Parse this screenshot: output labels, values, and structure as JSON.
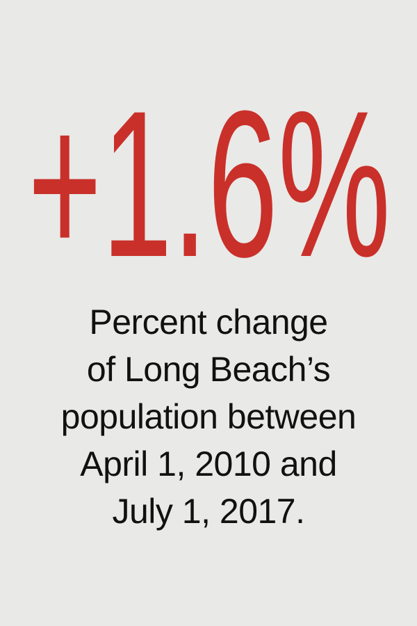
{
  "stat": "+1.6%",
  "caption_lines": [
    "Percent change",
    "of Long Beach’s",
    "population between",
    "April 1, 2010 and",
    "July 1, 2017."
  ]
}
